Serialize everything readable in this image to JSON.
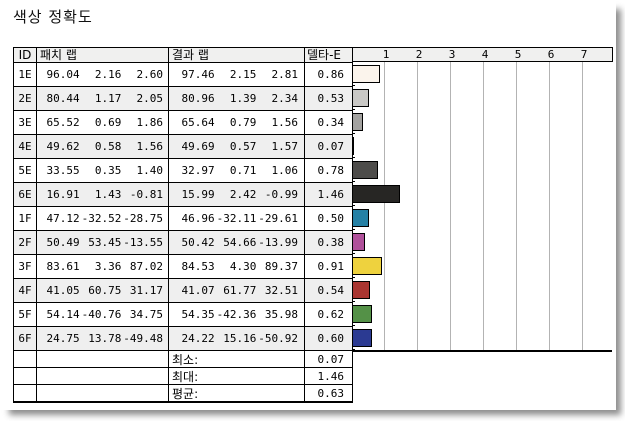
{
  "title": "색상 정확도",
  "table": {
    "headers": {
      "id": "ID",
      "patch": "패치 랩",
      "result": "결과 랩",
      "delta": "델타-E"
    },
    "rows": [
      {
        "id": "1E",
        "patch": [
          "96.04",
          "2.16",
          "2.60"
        ],
        "result": [
          "97.46",
          "2.15",
          "2.81"
        ],
        "delta": "0.86"
      },
      {
        "id": "2E",
        "patch": [
          "80.44",
          "1.17",
          "2.05"
        ],
        "result": [
          "80.96",
          "1.39",
          "2.34"
        ],
        "delta": "0.53"
      },
      {
        "id": "3E",
        "patch": [
          "65.52",
          "0.69",
          "1.86"
        ],
        "result": [
          "65.64",
          "0.79",
          "1.56"
        ],
        "delta": "0.34"
      },
      {
        "id": "4E",
        "patch": [
          "49.62",
          "0.58",
          "1.56"
        ],
        "result": [
          "49.69",
          "0.57",
          "1.57"
        ],
        "delta": "0.07"
      },
      {
        "id": "5E",
        "patch": [
          "33.55",
          "0.35",
          "1.40"
        ],
        "result": [
          "32.97",
          "0.71",
          "1.06"
        ],
        "delta": "0.78"
      },
      {
        "id": "6E",
        "patch": [
          "16.91",
          "1.43",
          "-0.81"
        ],
        "result": [
          "15.99",
          "2.42",
          "-0.99"
        ],
        "delta": "1.46"
      },
      {
        "id": "1F",
        "patch": [
          "47.12",
          "-32.52",
          "-28.75"
        ],
        "result": [
          "46.96",
          "-32.11",
          "-29.61"
        ],
        "delta": "0.50"
      },
      {
        "id": "2F",
        "patch": [
          "50.49",
          "53.45",
          "-13.55"
        ],
        "result": [
          "50.42",
          "54.66",
          "-13.99"
        ],
        "delta": "0.38"
      },
      {
        "id": "3F",
        "patch": [
          "83.61",
          "3.36",
          "87.02"
        ],
        "result": [
          "84.53",
          "4.30",
          "89.37"
        ],
        "delta": "0.91"
      },
      {
        "id": "4F",
        "patch": [
          "41.05",
          "60.75",
          "31.17"
        ],
        "result": [
          "41.07",
          "61.77",
          "32.51"
        ],
        "delta": "0.54"
      },
      {
        "id": "5F",
        "patch": [
          "54.14",
          "-40.76",
          "34.75"
        ],
        "result": [
          "54.35",
          "-42.36",
          "35.98"
        ],
        "delta": "0.62"
      },
      {
        "id": "6F",
        "patch": [
          "24.75",
          "13.78",
          "-49.48"
        ],
        "result": [
          "24.22",
          "15.16",
          "-50.92"
        ],
        "delta": "0.60"
      }
    ],
    "summary": [
      {
        "label": "최소:",
        "value": "0.07"
      },
      {
        "label": "최대:",
        "value": "1.46"
      },
      {
        "label": "평균:",
        "value": "0.63"
      }
    ]
  },
  "chart_data": {
    "type": "bar",
    "orientation": "horizontal",
    "title": "색상 정확도",
    "categories": [
      "1E",
      "2E",
      "3E",
      "4E",
      "5E",
      "6E",
      "1F",
      "2F",
      "3F",
      "4F",
      "5F",
      "6F"
    ],
    "values": [
      0.86,
      0.53,
      0.34,
      0.07,
      0.78,
      1.46,
      0.5,
      0.38,
      0.91,
      0.54,
      0.62,
      0.6
    ],
    "bar_colors": [
      "#fbf4ec",
      "#c9c8c5",
      "#a3a2a0",
      "#777674",
      "#4d4c4a",
      "#272624",
      "#2581a5",
      "#b0519b",
      "#eed23e",
      "#a93531",
      "#549147",
      "#2b3a92"
    ],
    "xlim": [
      0,
      7.9
    ],
    "xtick_labels": [
      "1",
      "2",
      "3",
      "4",
      "5",
      "6",
      "7"
    ],
    "grid": true,
    "summary": {
      "min": 0.07,
      "max": 1.46,
      "avg": 0.63
    }
  },
  "colors": {
    "border": "#000000",
    "header_bg": "#f0f0ef",
    "alt_row_bg": "#efefef",
    "gridline": "#b3b3b3"
  }
}
